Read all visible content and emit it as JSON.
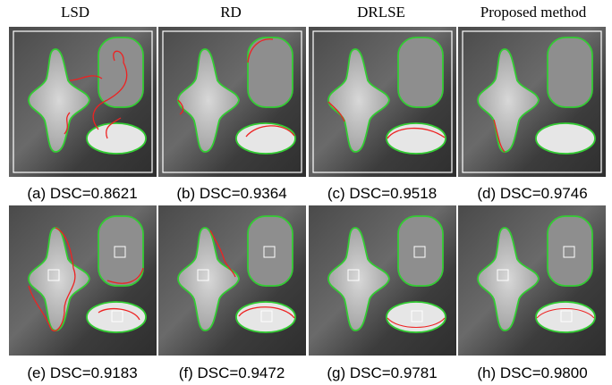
{
  "headers": [
    "LSD",
    "RD",
    "DRLSE",
    "Proposed method"
  ],
  "captions": [
    "(a) DSC=0.8621",
    "(b) DSC=0.9364",
    "(c) DSC=0.9518",
    "(d) DSC=0.9746",
    "(e) DSC=0.9183",
    "(f) DSC=0.9472",
    "(g) DSC=0.9781",
    "(h) DSC=0.9800"
  ]
}
